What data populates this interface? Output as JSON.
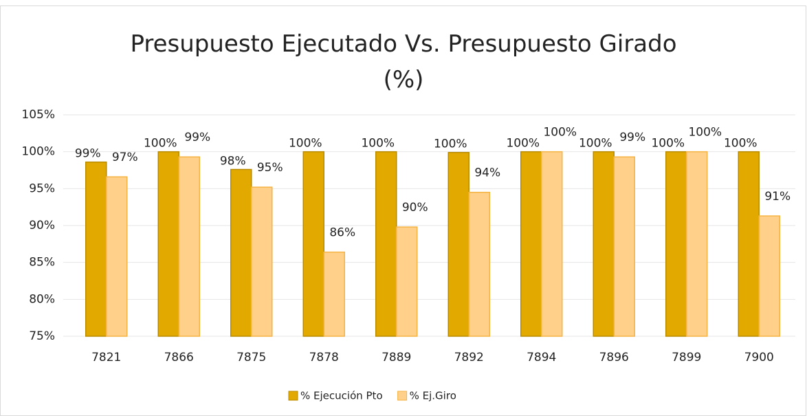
{
  "chart_data": {
    "type": "bar",
    "title": "Presupuesto Ejecutado Vs. Presupuesto Girado (%)",
    "categories": [
      "7821",
      "7866",
      "7875",
      "7878",
      "7889",
      "7892",
      "7894",
      "7896",
      "7899",
      "7900"
    ],
    "series": [
      {
        "name": "% Ejecución Pto",
        "color": "#E2AA00",
        "values": [
          98.6,
          100,
          97.6,
          100,
          100,
          99.9,
          100,
          100,
          100,
          100
        ],
        "value_labels": [
          "99%",
          "100%",
          "98%",
          "100%",
          "100%",
          "100%",
          "100%",
          "100%",
          "100%",
          "100%"
        ]
      },
      {
        "name": "% Ej.Giro",
        "color": "#FFD08A",
        "values": [
          96.6,
          99.3,
          95.2,
          86.4,
          89.8,
          94.5,
          100,
          99.3,
          100,
          91.3
        ],
        "value_labels": [
          "97%",
          "99%",
          "95%",
          "86%",
          "90%",
          "94%",
          "100%",
          "99%",
          "100%",
          "91%"
        ]
      }
    ],
    "ylim": [
      75,
      105
    ],
    "yticks": [
      {
        "value": 75,
        "label": "75%"
      },
      {
        "value": 80,
        "label": "80%"
      },
      {
        "value": 85,
        "label": "85%"
      },
      {
        "value": 90,
        "label": "90%"
      },
      {
        "value": 95,
        "label": "95%"
      },
      {
        "value": 100,
        "label": "100%"
      },
      {
        "value": 105,
        "label": "105%"
      }
    ],
    "grid": true,
    "legend": "bottom"
  }
}
